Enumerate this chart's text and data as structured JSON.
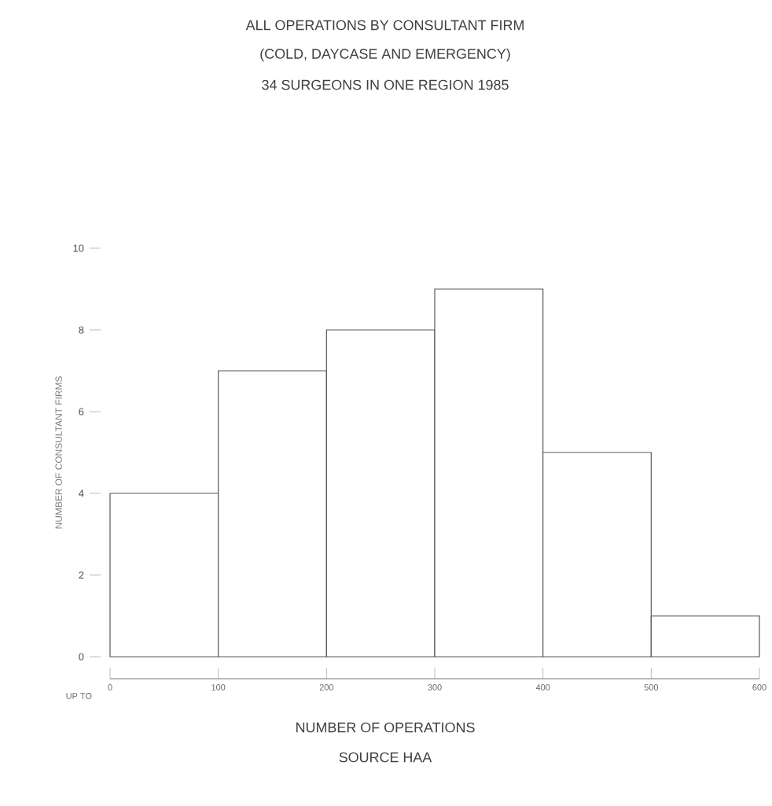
{
  "chart_data": {
    "type": "histogram",
    "title": "ALL OPERATIONS BY CONSULTANT FIRM",
    "subtitle": "(COLD, DAYCASE AND EMERGENCY)",
    "annotations": [
      "34 SURGEONS IN ONE REGION 1985",
      "UP TO",
      "SOURCE HAA"
    ],
    "xlabel": "NUMBER OF OPERATIONS",
    "ylabel": "NUMBER OF CONSULTANT FIRMS",
    "bins": [
      0,
      100,
      200,
      300,
      400,
      500,
      600
    ],
    "values": [
      4,
      7,
      8,
      9,
      5,
      1
    ],
    "color": "#ffffff",
    "xlim": [
      0,
      600
    ],
    "xticks": [
      0,
      100,
      200,
      300,
      400,
      500,
      600
    ],
    "ylim": [
      0,
      10
    ],
    "yticks": [
      0,
      2,
      4,
      6,
      8,
      10
    ],
    "grid": false
  }
}
